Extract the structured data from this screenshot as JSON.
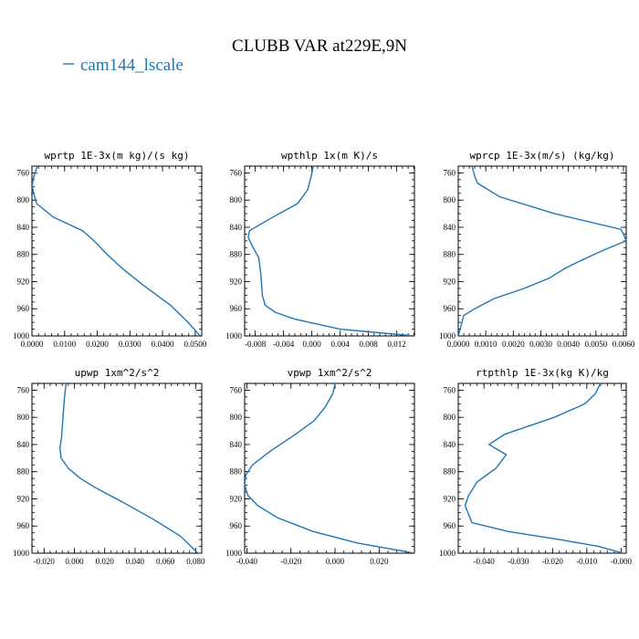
{
  "figure": {
    "title": "CLUBB VAR at229E,9N",
    "legend_label": "cam144_lscale",
    "line_color": "#1f77b4"
  },
  "chart_data": [
    {
      "type": "line",
      "title": "wprtp  1E-3x(m kg)/(s kg)",
      "xlim": [
        0.0,
        0.052
      ],
      "ylim": [
        1000,
        750
      ],
      "xticks": [
        0.0,
        0.01,
        0.02,
        0.03,
        0.04,
        0.05
      ],
      "xticklabels": [
        "0.0000",
        "0.0100",
        "0.0200",
        "0.0300",
        "0.0400",
        "0.0500"
      ],
      "yticks": [
        760,
        800,
        840,
        880,
        920,
        960,
        1000
      ],
      "yticklabels": [
        "760",
        "800",
        "840",
        "880",
        "920",
        "960",
        "1000"
      ],
      "series": [
        {
          "x": [
            0.0016,
            0.0003,
            0.0001,
            0.0005,
            0.0014,
            0.0065,
            0.0155,
            0.019,
            0.023,
            0.0275,
            0.034,
            0.0425,
            0.0478,
            0.0515
          ],
          "y": [
            750,
            770,
            780,
            790,
            805,
            825,
            845,
            860,
            880,
            900,
            925,
            955,
            980,
            1000
          ]
        }
      ]
    },
    {
      "type": "line",
      "title": "wpthlp  1x(m K)/s",
      "xlim": [
        -0.0095,
        0.0145
      ],
      "ylim": [
        1000,
        750
      ],
      "xticks": [
        -0.008,
        -0.004,
        0.0,
        0.004,
        0.008,
        0.012
      ],
      "xticklabels": [
        "-0.008",
        "-0.004",
        "0.000",
        "0.004",
        "0.008",
        "0.012"
      ],
      "yticks": [
        760,
        800,
        840,
        880,
        920,
        960,
        1000
      ],
      "yticklabels": [
        "760",
        "800",
        "840",
        "880",
        "920",
        "960",
        "1000"
      ],
      "series": [
        {
          "x": [
            0.0002,
            -0.0001,
            -0.0006,
            -0.002,
            -0.0055,
            -0.0088,
            -0.009,
            -0.0083,
            -0.0075,
            -0.0072,
            -0.007,
            -0.0066,
            -0.0052,
            -0.0025,
            0.004,
            0.0145
          ],
          "y": [
            750,
            765,
            785,
            805,
            825,
            845,
            855,
            870,
            885,
            910,
            940,
            955,
            965,
            975,
            990,
            1000
          ]
        }
      ]
    },
    {
      "type": "line",
      "title": "wprcp  1E-3x(m/s) (kg/kg)",
      "xlim": [
        0.0,
        0.0061
      ],
      "ylim": [
        1000,
        750
      ],
      "xticks": [
        0.0,
        0.001,
        0.002,
        0.003,
        0.004,
        0.005,
        0.006
      ],
      "xticklabels": [
        "0.0000",
        "0.0010",
        "0.0020",
        "0.0030",
        "0.0040",
        "0.0050",
        "0.0060"
      ],
      "yticks": [
        760,
        800,
        840,
        880,
        920,
        960,
        1000
      ],
      "yticklabels": [
        "760",
        "800",
        "840",
        "880",
        "920",
        "960",
        "1000"
      ],
      "series": [
        {
          "x": [
            0.0005,
            0.0006,
            0.0007,
            0.0015,
            0.0035,
            0.0059,
            0.006,
            0.0061,
            0.0052,
            0.0044,
            0.0039,
            0.0033,
            0.0024,
            0.0013,
            0.0006,
            0.0002,
            0.0001,
            0.0
          ],
          "y": [
            750,
            765,
            775,
            795,
            820,
            843,
            850,
            860,
            875,
            890,
            900,
            915,
            930,
            945,
            960,
            970,
            985,
            1000
          ]
        }
      ]
    },
    {
      "type": "line",
      "title": "upwp  1xm^2/s^2",
      "xlim": [
        -0.028,
        0.084
      ],
      "ylim": [
        1000,
        750
      ],
      "xticks": [
        -0.02,
        0.0,
        0.02,
        0.04,
        0.06,
        0.08
      ],
      "xticklabels": [
        "-0.020",
        "0.000",
        "0.020",
        "0.040",
        "0.060",
        "0.080"
      ],
      "yticks": [
        760,
        800,
        840,
        880,
        920,
        960,
        1000
      ],
      "yticklabels": [
        "760",
        "800",
        "840",
        "880",
        "920",
        "960",
        "1000"
      ],
      "series": [
        {
          "x": [
            -0.0055,
            -0.0065,
            -0.0075,
            -0.0085,
            -0.0095,
            -0.0088,
            -0.004,
            0.004,
            0.015,
            0.032,
            0.052,
            0.07,
            0.0815
          ],
          "y": [
            750,
            770,
            800,
            830,
            845,
            860,
            875,
            890,
            905,
            925,
            950,
            975,
            1000
          ]
        }
      ]
    },
    {
      "type": "line",
      "title": "vpwp  1xm^2/s^2",
      "xlim": [
        -0.041,
        0.036
      ],
      "ylim": [
        1000,
        750
      ],
      "xticks": [
        -0.04,
        -0.02,
        0.0,
        0.02
      ],
      "xticklabels": [
        "-0.040",
        "-0.020",
        "0.000",
        "0.020"
      ],
      "yticks": [
        760,
        800,
        840,
        880,
        920,
        960,
        1000
      ],
      "yticklabels": [
        "760",
        "800",
        "840",
        "880",
        "920",
        "960",
        "1000"
      ],
      "series": [
        {
          "x": [
            0.0,
            -0.001,
            -0.0045,
            -0.0095,
            -0.018,
            -0.0295,
            -0.0375,
            -0.0405,
            -0.041,
            -0.0395,
            -0.035,
            -0.026,
            -0.01,
            0.01,
            0.036
          ],
          "y": [
            750,
            765,
            785,
            805,
            825,
            850,
            870,
            885,
            900,
            915,
            930,
            948,
            968,
            985,
            1000
          ]
        }
      ]
    },
    {
      "type": "line",
      "title": "rtpthlp  1E-3x(kg K)/kg",
      "xlim": [
        -0.0475,
        0.0015
      ],
      "ylim": [
        1000,
        750
      ],
      "xticks": [
        -0.04,
        -0.03,
        -0.02,
        -0.01,
        0.0
      ],
      "xticklabels": [
        "-0.040",
        "-0.030",
        "-0.020",
        "-0.010",
        "-0.000"
      ],
      "yticks": [
        760,
        800,
        840,
        880,
        920,
        960,
        1000
      ],
      "yticklabels": [
        "760",
        "800",
        "840",
        "880",
        "920",
        "960",
        "1000"
      ],
      "series": [
        {
          "x": [
            -0.006,
            -0.0075,
            -0.0105,
            -0.0195,
            -0.034,
            -0.0385,
            -0.0335,
            -0.0365,
            -0.042,
            -0.0445,
            -0.0455,
            -0.0435,
            -0.033,
            -0.018,
            -0.0065,
            0.0005
          ],
          "y": [
            750,
            765,
            780,
            800,
            825,
            840,
            855,
            875,
            895,
            915,
            930,
            955,
            968,
            980,
            990,
            1000
          ]
        }
      ]
    }
  ]
}
